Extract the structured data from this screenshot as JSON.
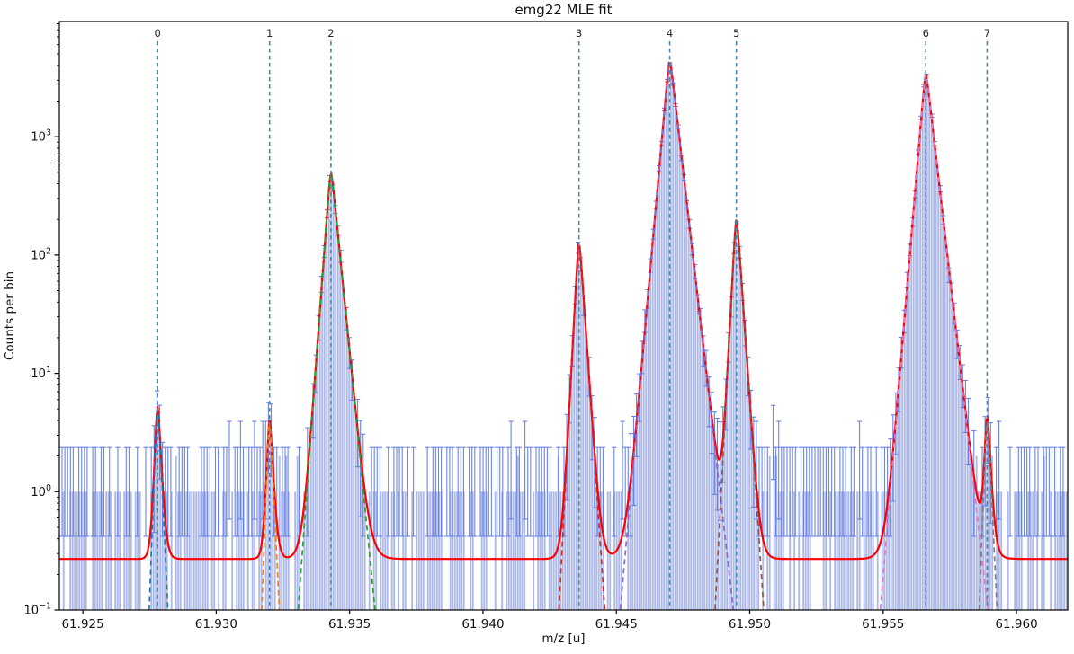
{
  "chart_data": {
    "type": "line",
    "title": "emg22 MLE fit",
    "xlabel": "m/z [u]",
    "ylabel": "Counts per bin",
    "y_log_scale": true,
    "grid": false,
    "xlim": [
      61.92412,
      61.96192
    ],
    "ylim": [
      0.1,
      9400
    ],
    "x_ticks": [
      {
        "value": 61.925,
        "label": "61.925"
      },
      {
        "value": 61.93,
        "label": "61.930"
      },
      {
        "value": 61.935,
        "label": "61.935"
      },
      {
        "value": 61.94,
        "label": "61.940"
      },
      {
        "value": 61.945,
        "label": "61.945"
      },
      {
        "value": 61.95,
        "label": "61.950"
      },
      {
        "value": 61.955,
        "label": "61.955"
      },
      {
        "value": 61.96,
        "label": "61.960"
      }
    ],
    "y_ticks": [
      {
        "value": 0.1,
        "mantissa": "10",
        "exponent": "−1"
      },
      {
        "value": 1,
        "mantissa": "10",
        "exponent": "0"
      },
      {
        "value": 10,
        "mantissa": "10",
        "exponent": "1"
      },
      {
        "value": 100,
        "mantissa": "10",
        "exponent": "2"
      },
      {
        "value": 1000,
        "mantissa": "10",
        "exponent": "3"
      }
    ],
    "baseline_counts": 0.27,
    "histogram_floor_counts": 1,
    "peaks": [
      {
        "index": 0,
        "label": "0",
        "centroid_mz": 61.9278,
        "height_counts": 5,
        "color": "#1f77b4",
        "tau_l": 7e-05,
        "tau_r": 9e-05
      },
      {
        "index": 1,
        "label": "1",
        "centroid_mz": 61.932,
        "height_counts": 3.8,
        "color": "#ff7f0e",
        "tau_l": 7e-05,
        "tau_r": 9e-05
      },
      {
        "index": 2,
        "label": "2",
        "centroid_mz": 61.9343,
        "height_counts": 490,
        "color": "#2ca02c",
        "tau_l": 0.00014,
        "tau_r": 0.00019
      },
      {
        "index": 3,
        "label": "3",
        "centroid_mz": 61.9436,
        "height_counts": 125,
        "color": "#d62728",
        "tau_l": 0.0001,
        "tau_r": 0.00013
      },
      {
        "index": 4,
        "label": "4",
        "centroid_mz": 61.947,
        "height_counts": 4300,
        "color": "#9467bd",
        "tau_l": 0.00017,
        "tau_r": 0.00022
      },
      {
        "index": 5,
        "label": "5",
        "centroid_mz": 61.9495,
        "height_counts": 200,
        "color": "#8c564b",
        "tau_l": 0.0001,
        "tau_r": 0.00013
      },
      {
        "index": 6,
        "label": "6",
        "centroid_mz": 61.9566,
        "height_counts": 3300,
        "color": "#e377c2",
        "tau_l": 0.00016,
        "tau_r": 0.00022
      },
      {
        "index": 7,
        "label": "7",
        "centroid_mz": 61.9589,
        "height_counts": 4,
        "color": "#7f7f7f",
        "tau_l": 7e-05,
        "tau_r": 9e-05
      }
    ],
    "legend": null,
    "colors": {
      "total_fit": "#ff0000",
      "data_point": "#3f63d6",
      "error_bar": "#5b79e4",
      "histogram_fill": "#a9b5e8",
      "centroid_line": "#4689ad",
      "peak_index_label": "#262626",
      "axis": "#000000",
      "text": "#111111"
    }
  }
}
